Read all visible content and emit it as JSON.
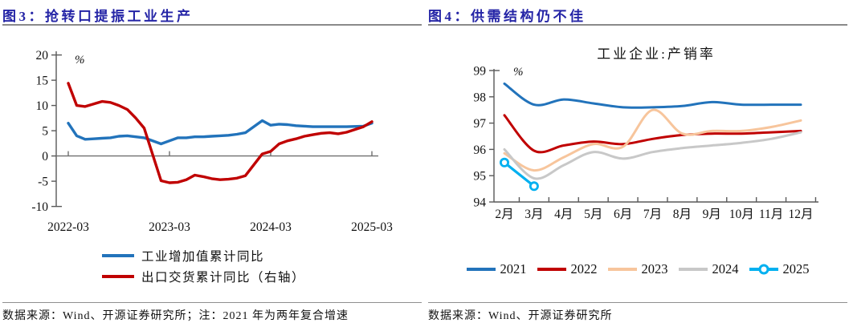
{
  "panels": [
    {
      "title": "图3：抢转口提振工业生产",
      "source": "数据来源：Wind、开源证券研究所；注：2021 年为两年复合增速"
    },
    {
      "title": "图4：供需结构仍不佳",
      "source": "数据来源：Wind、开源证券研究所"
    }
  ],
  "colors": {
    "title": "#2424a6",
    "rule": "#8a8a8a",
    "axis": "#595959",
    "text": "#111111",
    "blue": "#2273bb",
    "red": "#c00000",
    "orange": "#f7c59c",
    "gray": "#c8c8c8",
    "cyan": "#00b0f0"
  },
  "chart_data": [
    {
      "type": "line",
      "title": "",
      "unit_label": "%",
      "x": [
        "2022-03",
        "2022-04",
        "2022-05",
        "2022-06",
        "2022-07",
        "2022-08",
        "2022-09",
        "2022-10",
        "2022-11",
        "2022-12",
        "2023-02",
        "2023-03",
        "2023-04",
        "2023-05",
        "2023-06",
        "2023-07",
        "2023-08",
        "2023-09",
        "2023-10",
        "2023-11",
        "2023-12",
        "2024-02",
        "2024-03",
        "2024-04",
        "2024-05",
        "2024-06",
        "2024-07",
        "2024-08",
        "2024-09",
        "2024-10",
        "2024-11",
        "2024-12",
        "2025-02",
        "2025-03"
      ],
      "x_tick_labels": [
        "2022-03",
        "2023-03",
        "2024-03",
        "2025-03"
      ],
      "ylim": [
        -10,
        20
      ],
      "yticks": [
        20,
        15,
        10,
        5,
        0,
        -5,
        -10
      ],
      "grid": false,
      "legend_position": "bottom-left",
      "series": [
        {
          "name": "工业增加值累计同比",
          "color_key": "blue",
          "axis": "left",
          "smooth": false,
          "values": [
            6.5,
            4.0,
            3.3,
            3.4,
            3.5,
            3.6,
            3.9,
            4.0,
            3.8,
            3.6,
            2.4,
            3.0,
            3.6,
            3.6,
            3.8,
            3.8,
            3.9,
            4.0,
            4.1,
            4.3,
            4.6,
            7.0,
            6.1,
            6.3,
            6.2,
            6.0,
            5.9,
            5.8,
            5.8,
            5.8,
            5.8,
            5.8,
            5.9,
            6.5
          ]
        },
        {
          "name": "出口交货累计同比（右轴）",
          "color_key": "red",
          "axis": "right",
          "smooth": false,
          "values": [
            14.4,
            10.0,
            9.8,
            10.3,
            10.8,
            10.6,
            10.0,
            9.2,
            7.5,
            5.5,
            -4.9,
            -5.3,
            -5.2,
            -4.7,
            -3.8,
            -4.1,
            -4.5,
            -4.7,
            -4.6,
            -4.4,
            -3.9,
            0.4,
            0.9,
            2.4,
            3.0,
            3.4,
            3.9,
            4.2,
            4.5,
            4.6,
            4.4,
            4.7,
            5.8,
            6.8
          ]
        }
      ]
    },
    {
      "type": "line",
      "title": "工业企业:产销率",
      "unit_label": "%",
      "categories": [
        "2月",
        "3月",
        "4月",
        "5月",
        "6月",
        "7月",
        "8月",
        "9月",
        "10月",
        "11月",
        "12月"
      ],
      "ylim": [
        94,
        99
      ],
      "yticks": [
        99,
        98,
        97,
        96,
        95,
        94
      ],
      "grid": false,
      "legend_position": "bottom-center",
      "series": [
        {
          "name": "2021",
          "color_key": "blue",
          "smooth": true,
          "marker": "none",
          "values": [
            98.5,
            97.7,
            97.9,
            97.75,
            97.6,
            97.6,
            97.65,
            97.8,
            97.7,
            97.7,
            97.7
          ]
        },
        {
          "name": "2022",
          "color_key": "red",
          "smooth": true,
          "marker": "none",
          "values": [
            97.3,
            95.95,
            96.15,
            96.3,
            96.2,
            96.4,
            96.55,
            96.6,
            96.6,
            96.65,
            96.7
          ]
        },
        {
          "name": "2023",
          "color_key": "orange",
          "smooth": true,
          "marker": "none",
          "values": [
            95.85,
            95.2,
            95.7,
            96.2,
            96.1,
            97.5,
            96.6,
            96.7,
            96.7,
            96.85,
            97.1
          ]
        },
        {
          "name": "2024",
          "color_key": "gray",
          "smooth": true,
          "marker": "none",
          "values": [
            96.0,
            94.9,
            95.4,
            95.9,
            95.65,
            95.9,
            96.05,
            96.15,
            96.25,
            96.4,
            96.65
          ]
        },
        {
          "name": "2025",
          "color_key": "cyan",
          "smooth": false,
          "marker": "circle-open",
          "values": [
            95.5,
            94.6,
            null,
            null,
            null,
            null,
            null,
            null,
            null,
            null,
            null
          ]
        }
      ]
    }
  ]
}
